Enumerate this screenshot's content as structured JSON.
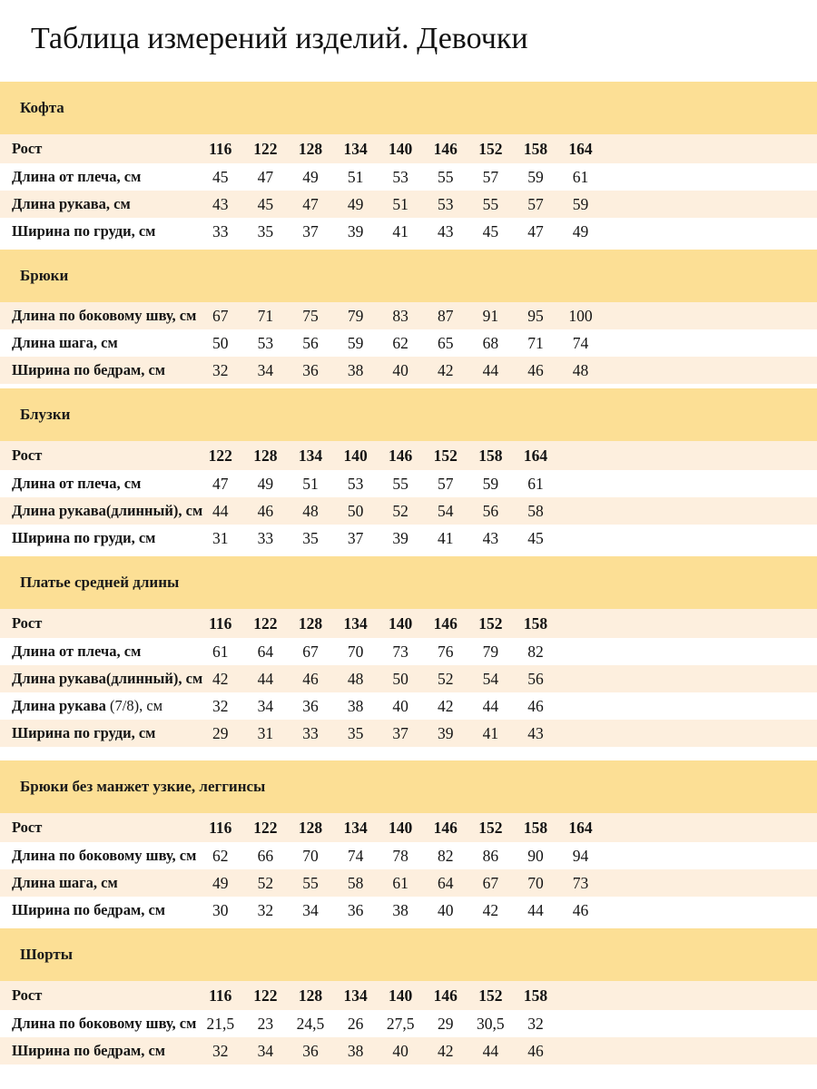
{
  "title": "Таблица измерений изделий. Девочки",
  "sections": [
    {
      "name": "Кофта",
      "size_row": {
        "label": "Рост",
        "values": [
          "116",
          "122",
          "128",
          "134",
          "140",
          "146",
          "152",
          "158",
          "164"
        ]
      },
      "rows": [
        {
          "label": "Длина от плеча, см",
          "values": [
            "45",
            "47",
            "49",
            "51",
            "53",
            "55",
            "57",
            "59",
            "61"
          ]
        },
        {
          "label": "Длина рукава, см",
          "values": [
            "43",
            "45",
            "47",
            "49",
            "51",
            "53",
            "55",
            "57",
            "59"
          ]
        },
        {
          "label": "Ширина по груди, см",
          "values": [
            "33",
            "35",
            "37",
            "39",
            "41",
            "43",
            "45",
            "47",
            "49"
          ]
        }
      ]
    },
    {
      "name": "Брюки",
      "rows": [
        {
          "label": "Длина по боковому шву, см",
          "values": [
            "67",
            "71",
            "75",
            "79",
            "83",
            "87",
            "91",
            "95",
            "100"
          ]
        },
        {
          "label": "Длина шага, см",
          "values": [
            "50",
            "53",
            "56",
            "59",
            "62",
            "65",
            "68",
            "71",
            "74"
          ]
        },
        {
          "label": "Ширина по бедрам, см",
          "values": [
            "32",
            "34",
            "36",
            "38",
            "40",
            "42",
            "44",
            "46",
            "48"
          ]
        }
      ]
    },
    {
      "name": "Блузки",
      "size_row": {
        "label": "Рост",
        "values": [
          "122",
          "128",
          "134",
          "140",
          "146",
          "152",
          "158",
          "164"
        ]
      },
      "rows": [
        {
          "label": "Длина от плеча, см",
          "values": [
            "47",
            "49",
            "51",
            "53",
            "55",
            "57",
            "59",
            "61"
          ]
        },
        {
          "label": "Длина рукава(длинный), см",
          "values": [
            "44",
            "46",
            "48",
            "50",
            "52",
            "54",
            "56",
            "58"
          ]
        },
        {
          "label": "Ширина по груди, см",
          "values": [
            "31",
            "33",
            "35",
            "37",
            "39",
            "41",
            "43",
            "45"
          ]
        }
      ]
    },
    {
      "name": "Платье средней длины",
      "size_row": {
        "label": "Рост",
        "values": [
          "116",
          "122",
          "128",
          "134",
          "140",
          "146",
          "152",
          "158"
        ]
      },
      "rows": [
        {
          "label": "Длина от плеча, см",
          "values": [
            "61",
            "64",
            "67",
            "70",
            "73",
            "76",
            "79",
            "82"
          ]
        },
        {
          "label": "Длина рукава(длинный), см",
          "values": [
            "42",
            "44",
            "46",
            "48",
            "50",
            "52",
            "54",
            "56"
          ]
        },
        {
          "label": "Длина рукава",
          "label_suffix": " (7/8), см",
          "values": [
            "32",
            "34",
            "36",
            "38",
            "40",
            "42",
            "44",
            "46"
          ]
        },
        {
          "label": "Ширина по груди, см",
          "values": [
            "29",
            "31",
            "33",
            "35",
            "37",
            "39",
            "41",
            "43"
          ]
        }
      ]
    },
    {
      "name": "Брюки без манжет узкие, леггинсы",
      "gap_before": true,
      "size_row": {
        "label": "Рост",
        "values": [
          "116",
          "122",
          "128",
          "134",
          "140",
          "146",
          "152",
          "158",
          "164"
        ]
      },
      "rows": [
        {
          "label": "Длина по боковому шву, см",
          "values": [
            "62",
            "66",
            "70",
            "74",
            "78",
            "82",
            "86",
            "90",
            "94"
          ]
        },
        {
          "label": "Длина шага, см",
          "values": [
            "49",
            "52",
            "55",
            "58",
            "61",
            "64",
            "67",
            "70",
            "73"
          ]
        },
        {
          "label": "Ширина по бедрам, см",
          "values": [
            "30",
            "32",
            "34",
            "36",
            "38",
            "40",
            "42",
            "44",
            "46"
          ]
        }
      ]
    },
    {
      "name": "Шорты",
      "size_row": {
        "label": "Рост",
        "values": [
          "116",
          "122",
          "128",
          "134",
          "140",
          "146",
          "152",
          "158"
        ]
      },
      "rows": [
        {
          "label": "Длина по боковому шву, см",
          "values": [
            "21,5",
            "23",
            "24,5",
            "26",
            "27,5",
            "29",
            "30,5",
            "32"
          ]
        },
        {
          "label": "Ширина по бедрам, см",
          "values": [
            "32",
            "34",
            "36",
            "38",
            "40",
            "42",
            "44",
            "46"
          ]
        }
      ]
    }
  ],
  "colors": {
    "band": "#fcdf95",
    "stripe": "#fdefde",
    "text": "#141414"
  }
}
